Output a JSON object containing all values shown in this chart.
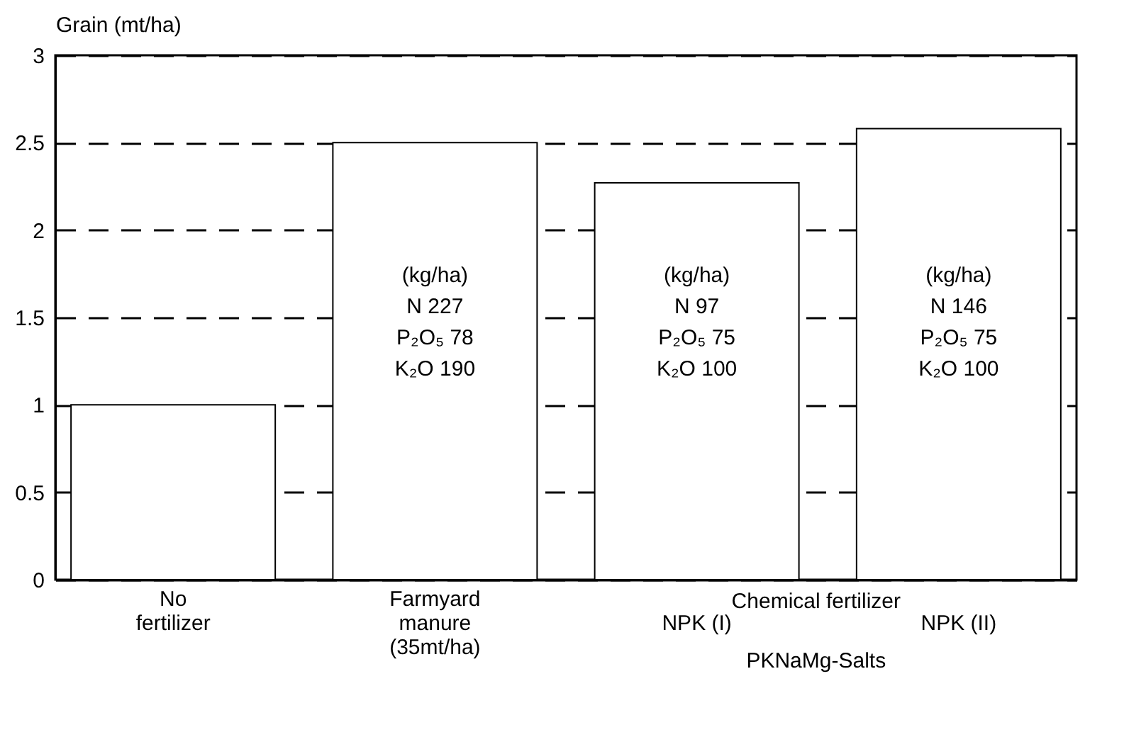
{
  "chart_data": {
    "type": "bar",
    "ylabel": "Grain  (mt/ha)",
    "categories": [
      "No\nfertilizer",
      "Farmyard\nmanure\n(35mt/ha)",
      "NPK  (I)",
      "NPK  (II)"
    ],
    "values": [
      1.0,
      2.5,
      2.27,
      2.58
    ],
    "color": "#ffffff",
    "ylim": [
      0,
      3
    ],
    "yticks": [
      0,
      0.5,
      1,
      1.5,
      2,
      2.5,
      3
    ],
    "grid": "y",
    "annotations": [
      "(kg/ha)\n\nN      227\nP₂O₅  78\nK₂O   190",
      "(kg/ha)\n\nN      97\nP₂O₅  75\nK₂O   100",
      "(kg/ha)\n\nN      146\nP₂O₅  75\nK₂O   100",
      "Chemical  fertilizer",
      "PKNaMg-Salts"
    ]
  }
}
